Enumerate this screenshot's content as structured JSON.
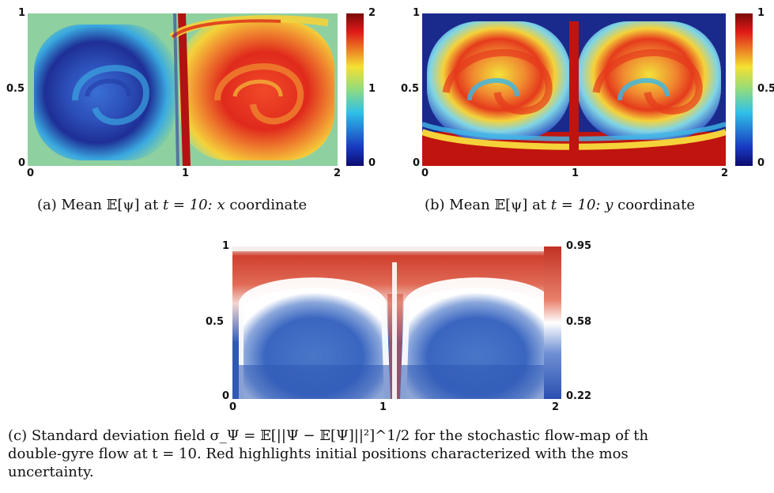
{
  "panels": [
    {
      "id": "a",
      "axis": {
        "x_ticks": [
          "0",
          "1",
          "2"
        ],
        "y_ticks": [
          "0",
          "0.5",
          "1"
        ]
      },
      "colorbar": {
        "ticks": [
          "2",
          "1",
          "0"
        ],
        "range": [
          0,
          2
        ],
        "colormap": "jet"
      },
      "caption": {
        "label": "(a) Mean",
        "symbol": "𝔼[ψ]",
        "middle": "at",
        "time": "t = 10:",
        "coord_var": "x",
        "tail": "coordinate"
      }
    },
    {
      "id": "b",
      "axis": {
        "x_ticks": [
          "0",
          "1",
          "2"
        ],
        "y_ticks": [
          "0",
          "0.5",
          "1"
        ]
      },
      "colorbar": {
        "ticks": [
          "1",
          "0.5",
          "0"
        ],
        "range": [
          0,
          1
        ],
        "colormap": "jet"
      },
      "caption": {
        "label": "(b) Mean",
        "symbol": "𝔼[ψ]",
        "middle": "at",
        "time": "t = 10:",
        "coord_var": "y",
        "tail": "coordinate"
      }
    },
    {
      "id": "c",
      "axis": {
        "x_ticks": [
          "0",
          "1",
          "2"
        ],
        "y_ticks": [
          "0",
          "0.5",
          "1"
        ]
      },
      "colorbar": {
        "ticks": [
          "0.95",
          "0.58",
          "0.22"
        ],
        "range": [
          0.22,
          0.95
        ],
        "colormap": "blue-white-red"
      }
    }
  ],
  "caption_c": {
    "line1": "(c) Standard deviation field σ_Ψ = 𝔼[||Ψ − 𝔼[Ψ]||²]^1/2 for the stochastic flow-map of th",
    "line2": "double-gyre flow at t = 10.  Red highlights initial positions characterized with the mos",
    "line3": "uncertainty."
  },
  "colors": {
    "jet_dark_blue": "#1a2a8c",
    "jet_cyan": "#2ec4e0",
    "jet_yellow": "#f2e23a",
    "jet_red": "#d42020",
    "bwr_red": "#d0402f",
    "bwr_blue": "#2f5ab4"
  }
}
